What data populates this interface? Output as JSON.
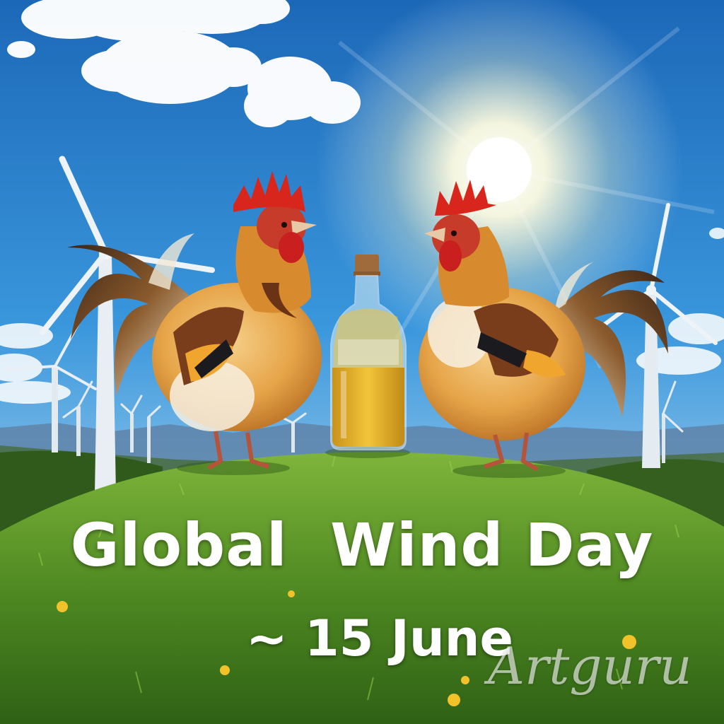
{
  "poster": {
    "title": "Global  Wind Day",
    "date": "~ 15 June",
    "watermark": "Artguru"
  },
  "colors": {
    "sky_top": "#1f6fbf",
    "sky_horizon": "#cfe6f5",
    "grass": "#5f9a2a",
    "rooster_body": "#e9a84a",
    "comb": "#d42a1e",
    "oil": "#e8b526"
  }
}
